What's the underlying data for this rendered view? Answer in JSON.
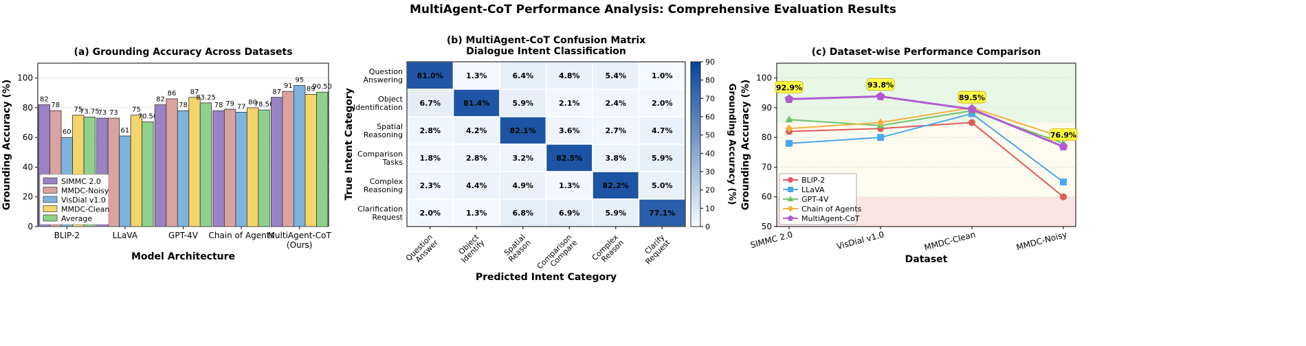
{
  "suptitle": "MultiAgent-CoT Performance Analysis: Comprehensive Evaluation Results",
  "colors": {
    "series": [
      "#9b82c4",
      "#d9a3a0",
      "#7fb3dd",
      "#f2d56b",
      "#8fd18a"
    ],
    "series_edge": "#333333",
    "line": [
      "#e05a5a",
      "#4da6e8",
      "#6cc26c",
      "#f5b041",
      "#b05cd0"
    ],
    "cm_low": "#f7fbff",
    "cm_high": "#08449a",
    "zone_green": "#e9f7e6",
    "zone_yellow": "#fdfbf0",
    "zone_red": "#fbe4e4",
    "label_box": "#ffff44"
  },
  "chart_data": [
    {
      "id": "a",
      "type": "bar",
      "title": "(a) Grounding Accuracy Across Datasets",
      "xlabel": "Model Architecture",
      "ylabel": "Grounding Accuracy (%)",
      "ylim": [
        0,
        110
      ],
      "yticks": [
        0,
        20,
        40,
        60,
        80,
        100
      ],
      "categories": [
        "BLIP-2",
        "LLaVA",
        "GPT-4V",
        "Chain of Agents",
        "MultiAgent-CoT (Ours)"
      ],
      "category_lines": [
        [
          "BLIP-2"
        ],
        [
          "LLaVA"
        ],
        [
          "GPT-4V"
        ],
        [
          "Chain of Agents"
        ],
        [
          "MultiAgent-CoT",
          "(Ours)"
        ]
      ],
      "series": [
        {
          "name": "SIMMC 2.0",
          "values": [
            82,
            73,
            82,
            78,
            87
          ],
          "labels": [
            "82",
            "73",
            "82",
            "78",
            "87"
          ]
        },
        {
          "name": "MMDC-Noisy",
          "values": [
            78,
            73,
            86,
            79,
            91
          ],
          "labels": [
            "78",
            "73",
            "86",
            "79",
            "91"
          ]
        },
        {
          "name": "VisDial v1.0",
          "values": [
            60,
            61,
            78,
            77,
            95
          ],
          "labels": [
            "60",
            "61",
            "78",
            "77",
            "95"
          ]
        },
        {
          "name": "MMDC-Clean",
          "values": [
            75,
            75,
            87,
            80,
            89
          ],
          "labels": [
            "75",
            "75",
            "87",
            "80",
            "89"
          ]
        },
        {
          "name": "Average",
          "values": [
            73.75,
            70.5,
            83.25,
            78.5,
            90.5
          ],
          "labels": [
            "73.75",
            "70.50",
            "83.25",
            "78.50",
            "90.50"
          ]
        }
      ],
      "legend": "lower-left"
    },
    {
      "id": "b",
      "type": "heatmap",
      "title_lines": [
        "(b) MultiAgent-CoT Confusion Matrix",
        "Dialogue Intent Classification"
      ],
      "xlabel": "Predicted Intent Category",
      "ylabel": "True Intent Category",
      "colorbar_label": "Grounding Accuracy (%)",
      "colorbar_range": [
        0,
        90
      ],
      "colorbar_ticks": [
        0,
        10,
        20,
        30,
        40,
        50,
        60,
        70,
        80,
        90
      ],
      "row_labels": [
        [
          "Question",
          "Answering"
        ],
        [
          "Object",
          "Identification"
        ],
        [
          "Spatial",
          "Reasoning"
        ],
        [
          "Comparison",
          "Tasks"
        ],
        [
          "Complex",
          "Reasoning"
        ],
        [
          "Clarification",
          "Request"
        ]
      ],
      "col_labels": [
        [
          "Question",
          "Answer"
        ],
        [
          "Object",
          "Identify"
        ],
        [
          "Spatial",
          "Reason"
        ],
        [
          "Comparison",
          "Compare"
        ],
        [
          "Complex",
          "Reason"
        ],
        [
          "Clarify",
          "Request"
        ]
      ],
      "values": [
        [
          81.0,
          1.3,
          6.4,
          4.8,
          5.4,
          1.0
        ],
        [
          6.7,
          81.4,
          5.9,
          2.1,
          2.4,
          2.0
        ],
        [
          2.8,
          4.2,
          82.1,
          3.6,
          2.7,
          4.7
        ],
        [
          1.8,
          2.8,
          3.2,
          82.5,
          3.8,
          5.9
        ],
        [
          2.3,
          4.4,
          4.9,
          1.3,
          82.2,
          5.0
        ],
        [
          2.0,
          1.3,
          6.8,
          6.9,
          5.9,
          77.1
        ]
      ],
      "cell_labels": [
        [
          "81.0%",
          "1.3%",
          "6.4%",
          "4.8%",
          "5.4%",
          "1.0%"
        ],
        [
          "6.7%",
          "81.4%",
          "5.9%",
          "2.1%",
          "2.4%",
          "2.0%"
        ],
        [
          "2.8%",
          "4.2%",
          "82.1%",
          "3.6%",
          "2.7%",
          "4.7%"
        ],
        [
          "1.8%",
          "2.8%",
          "3.2%",
          "82.5%",
          "3.8%",
          "5.9%"
        ],
        [
          "2.3%",
          "4.4%",
          "4.9%",
          "1.3%",
          "82.2%",
          "5.0%"
        ],
        [
          "2.0%",
          "1.3%",
          "6.8%",
          "6.9%",
          "5.9%",
          "77.1%"
        ]
      ]
    },
    {
      "id": "c",
      "type": "line",
      "title": "(c) Dataset-wise Performance Comparison",
      "xlabel": "Dataset",
      "ylabel": "Grounding Accuracy (%)",
      "ylim": [
        50,
        105
      ],
      "yticks": [
        50,
        60,
        70,
        80,
        90,
        100
      ],
      "zones": [
        [
          85,
          105,
          "green"
        ],
        [
          60,
          85,
          "yellow"
        ],
        [
          50,
          60,
          "red"
        ]
      ],
      "categories": [
        "SIMMC 2.0",
        "VisDial v1.0",
        "MMDC-Clean",
        "MMDC-Noisy"
      ],
      "series": [
        {
          "name": "BLIP-2",
          "marker": "circle",
          "values": [
            82,
            83,
            85,
            60
          ]
        },
        {
          "name": "LLaVA",
          "marker": "square",
          "values": [
            78,
            80,
            88,
            65
          ]
        },
        {
          "name": "GPT-4V",
          "marker": "triangle",
          "values": [
            86,
            84,
            89,
            78
          ]
        },
        {
          "name": "Chain of Agents",
          "marker": "diamond",
          "values": [
            83,
            85,
            90,
            80
          ]
        },
        {
          "name": "MultiAgent-CoT",
          "marker": "pentagon",
          "values": [
            92.9,
            93.8,
            89.5,
            76.9
          ]
        }
      ],
      "annotations": [
        "92.9%",
        "93.8%",
        "89.5%",
        "76.9%"
      ],
      "legend": "lower-left"
    }
  ]
}
